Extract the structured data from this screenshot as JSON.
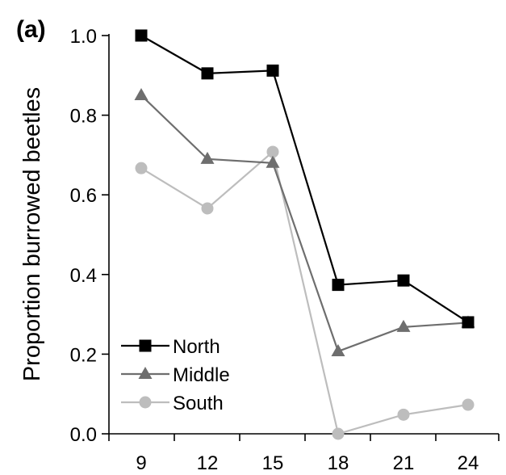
{
  "chart_data": {
    "type": "line",
    "panel_label": "(a)",
    "title": "",
    "xlabel": "",
    "ylabel": "Proportion burrowed beetles",
    "x": [
      9,
      12,
      15,
      18,
      21,
      24
    ],
    "x_tick_labels": [
      "9",
      "12",
      "15",
      "18",
      "21",
      "24"
    ],
    "ylim": [
      0.0,
      1.0
    ],
    "y_ticks": [
      0.0,
      0.2,
      0.4,
      0.6,
      0.8,
      1.0
    ],
    "y_tick_labels": [
      "0.0",
      "0.2",
      "0.4",
      "0.6",
      "0.8",
      "1.0"
    ],
    "grid": false,
    "legend_position": "bottom-left",
    "series": [
      {
        "name": "North",
        "marker": "square",
        "color": "#000000",
        "values": [
          1.0,
          0.905,
          0.912,
          0.374,
          0.385,
          0.28
        ]
      },
      {
        "name": "Middle",
        "marker": "triangle",
        "color": "#6e6e6e",
        "values": [
          0.85,
          0.69,
          0.68,
          0.207,
          0.268,
          0.279
        ]
      },
      {
        "name": "South",
        "marker": "circle",
        "color": "#bdbdbd",
        "values": [
          0.667,
          0.566,
          0.708,
          0.0,
          0.048,
          0.073
        ]
      }
    ]
  }
}
